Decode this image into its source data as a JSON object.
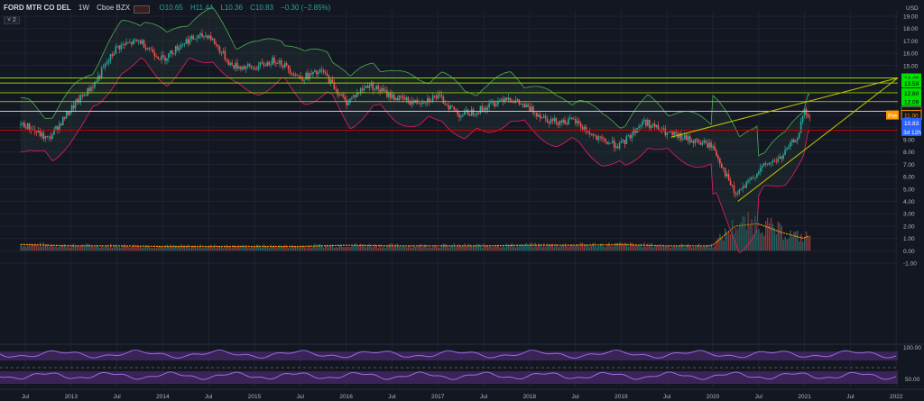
{
  "header": {
    "symbol": "FORD MTR CO DEL",
    "interval": "1W",
    "exchange": "Cboe BZX",
    "open": "O10.65",
    "high": "H11.44",
    "low": "L10.36",
    "close": "C10.83",
    "change": "−0.30 (−2.85%)",
    "indicator_count": "2"
  },
  "currency": "USD",
  "colors": {
    "background": "#131722",
    "up": "#26a69a",
    "down": "#ef5350",
    "grid": "#1f2330",
    "hline_green": "#8fd400",
    "hline_red": "#d00000",
    "hline_white": "#c8c8c8",
    "wedge": "#c8c800",
    "bb_upper": "#4caf50",
    "bb_lower": "#e91e63",
    "vol_ma": "#ff9800",
    "osc_line": "#9c6ade",
    "osc_band": "#4a2a6e"
  },
  "chart_data": {
    "type": "line",
    "title": "FORD MTR CO DEL · 1W · Cboe BZX",
    "x_ticks": [
      "Jul",
      "2013",
      "Jul",
      "2014",
      "Jul",
      "2015",
      "Jul",
      "2016",
      "Jul",
      "2017",
      "Jul",
      "2018",
      "Jul",
      "2019",
      "Jul",
      "2020",
      "Jul",
      "2021",
      "Jul",
      "2022"
    ],
    "y_ticks": [
      "19.00",
      "18.00",
      "17.00",
      "16.00",
      "15.00",
      "14.00",
      "13.00",
      "12.00",
      "11.00",
      "10.00",
      "9.00",
      "8.00",
      "7.00",
      "6.00",
      "5.00",
      "4.00",
      "3.00",
      "2.00",
      "1.00",
      "0.00",
      "-1.00"
    ],
    "ylim": [
      -1,
      19.5
    ],
    "price_x": [
      2012.5,
      2012.75,
      2013.0,
      2013.25,
      2013.5,
      2013.75,
      2014.0,
      2014.25,
      2014.5,
      2014.75,
      2015.0,
      2015.25,
      2015.5,
      2015.75,
      2016.0,
      2016.25,
      2016.5,
      2016.75,
      2017.0,
      2017.25,
      2017.5,
      2017.75,
      2018.0,
      2018.25,
      2018.5,
      2018.75,
      2019.0,
      2019.25,
      2019.5,
      2019.75,
      2020.0,
      2020.1,
      2020.25,
      2020.4,
      2020.5,
      2020.6,
      2020.75,
      2020.85,
      2020.95,
      2021.0,
      2021.05
    ],
    "price_y": [
      10.2,
      9.0,
      11.5,
      13.5,
      16.5,
      17.0,
      15.5,
      17.0,
      17.5,
      15.0,
      14.8,
      15.5,
      14.0,
      14.5,
      12.0,
      13.5,
      12.5,
      12.0,
      12.5,
      11.0,
      11.5,
      12.5,
      11.5,
      10.5,
      10.5,
      9.0,
      8.5,
      10.5,
      9.5,
      9.0,
      8.5,
      7.0,
      4.5,
      5.5,
      6.5,
      7.0,
      7.5,
      8.5,
      9.5,
      11.3,
      10.83
    ],
    "volume_x": [
      2012.5,
      2013.0,
      2013.5,
      2014.0,
      2014.5,
      2015.0,
      2015.5,
      2016.0,
      2016.5,
      2017.0,
      2017.5,
      2018.0,
      2018.5,
      2019.0,
      2019.5,
      2020.0,
      2020.25,
      2020.5,
      2020.75,
      2021.0,
      2021.05
    ],
    "volume_y": [
      0.5,
      0.4,
      0.4,
      0.35,
      0.35,
      0.35,
      0.35,
      0.45,
      0.4,
      0.4,
      0.4,
      0.45,
      0.45,
      0.5,
      0.4,
      0.4,
      2.0,
      2.2,
      1.5,
      1.0,
      1.2
    ],
    "horizontal_levels": [
      {
        "value": 14.0,
        "label": "14.00",
        "color": "green"
      },
      {
        "value": 13.59,
        "label": "13.59",
        "color": "green"
      },
      {
        "value": 12.8,
        "label": "12.80",
        "color": "green"
      },
      {
        "value": 12.09,
        "label": "12.09",
        "color": "green"
      },
      {
        "value": 11.3,
        "label": "11.30",
        "color": "white"
      },
      {
        "value": 9.76,
        "label": "9.76",
        "color": "red"
      }
    ],
    "price_labels": {
      "pre_tag": "Pre",
      "pre_value": "11.00",
      "last_value": "10.83",
      "countdown": "3d 12h"
    },
    "oscillator_ticks": [
      "100.00",
      "50.00"
    ]
  }
}
